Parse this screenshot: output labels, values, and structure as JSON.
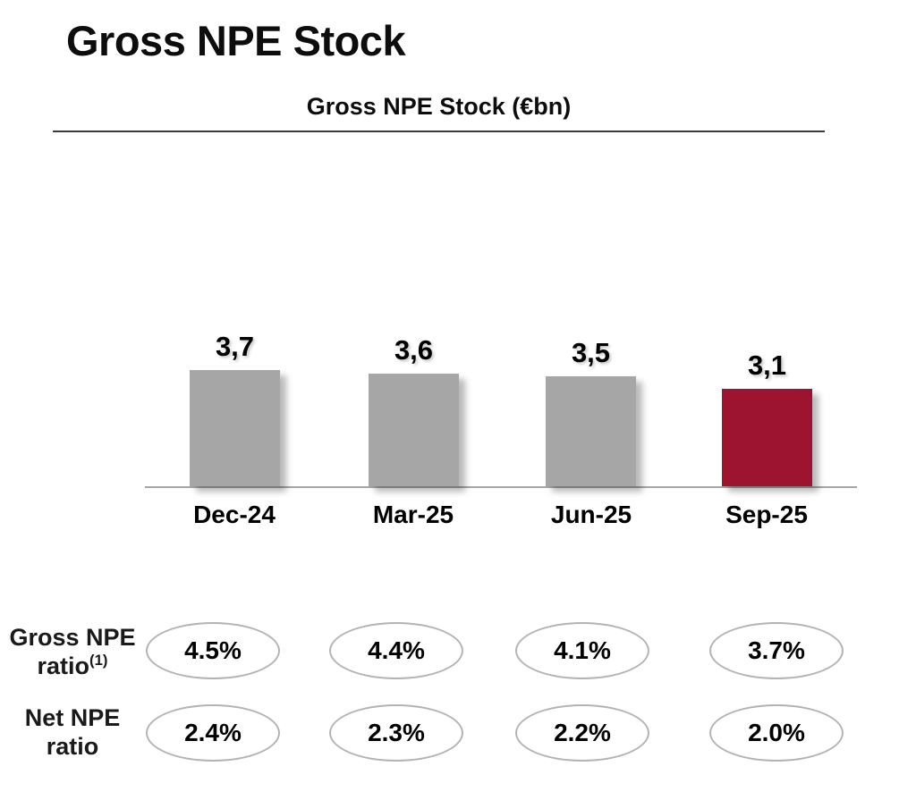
{
  "slide": {
    "title": "Gross NPE Stock"
  },
  "chart_data": {
    "type": "bar",
    "title": "Gross NPE Stock (€bn)",
    "unit": "€bn",
    "categories": [
      "Dec-24",
      "Mar-25",
      "Jun-25",
      "Sep-25"
    ],
    "values": [
      3.7,
      3.6,
      3.5,
      3.1
    ],
    "value_labels": [
      "3,7",
      "3,6",
      "3,5",
      "3,1"
    ],
    "ylim": [
      0,
      3.7
    ],
    "grid": false,
    "legend": "none",
    "highlight_index": 3,
    "bar_colors": [
      "#A6A6A6",
      "#A6A6A6",
      "#A6A6A6",
      "#9C1430"
    ],
    "axis_color": "#A6A6A6"
  },
  "ratio_rows": [
    {
      "label_line1": "Gross NPE",
      "label_line2": "ratio",
      "footnote": "(1)",
      "values": [
        "4.5%",
        "4.4%",
        "4.1%",
        "3.7%"
      ]
    },
    {
      "label_line1": "Net NPE",
      "label_line2": "ratio",
      "footnote": "",
      "values": [
        "2.4%",
        "2.3%",
        "2.2%",
        "2.0%"
      ]
    }
  ],
  "colors": {
    "bar_gray": "#A6A6A6",
    "bar_highlight": "#9C1430",
    "header_rule": "#3A3A3A",
    "axis_line": "#A6A6A6",
    "oval_border": "#B3B3B3",
    "text": "#000000"
  }
}
